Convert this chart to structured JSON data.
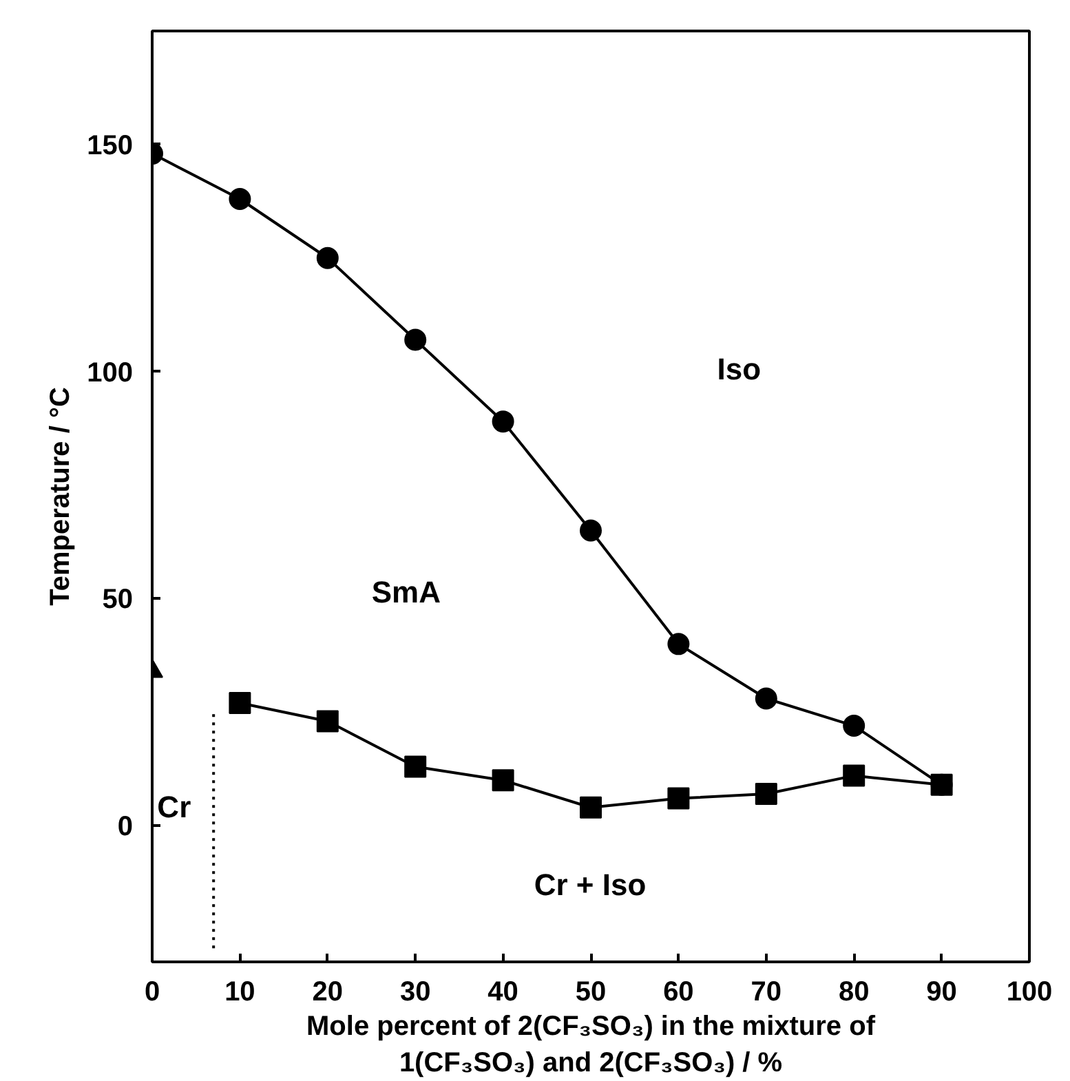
{
  "chart_data": {
    "type": "line",
    "xlabel": "Mole percent of 2(CF₃SO₃) in the mixture of\n1(CF₃SO₃) and 2(CF₃SO₃) / %",
    "ylabel": "Temperature / °C",
    "x": [
      0,
      10,
      20,
      30,
      40,
      50,
      60,
      70,
      80,
      90
    ],
    "series": [
      {
        "color": "#000000",
        "marker": "circle",
        "values": [
          148,
          138,
          125,
          107,
          89,
          65,
          40,
          28,
          22,
          9
        ]
      },
      {
        "color": "#000000",
        "marker": "square",
        "values": [
          null,
          27,
          23,
          13,
          10,
          4,
          6,
          7,
          11,
          9
        ]
      },
      {
        "type": "scatter",
        "color": "#000000",
        "marker": "triangle",
        "values": [
          34,
          null,
          null,
          null,
          null,
          null,
          null,
          null,
          null,
          null
        ]
      },
      {
        "color": "#000000",
        "marker": "none",
        "line_style": "dotted",
        "x": [
          7,
          7
        ],
        "values": [
          -27,
          25
        ]
      }
    ],
    "annotations": [
      "Iso",
      "SmA",
      "Cr",
      "Cr + Iso"
    ],
    "xlim": [
      0,
      100
    ],
    "ylim": [
      -30,
      175
    ],
    "xticks": [
      0,
      10,
      20,
      30,
      40,
      50,
      60,
      70,
      80,
      90,
      100
    ],
    "yticks": [
      0,
      50,
      100,
      150
    ],
    "grid": false
  }
}
